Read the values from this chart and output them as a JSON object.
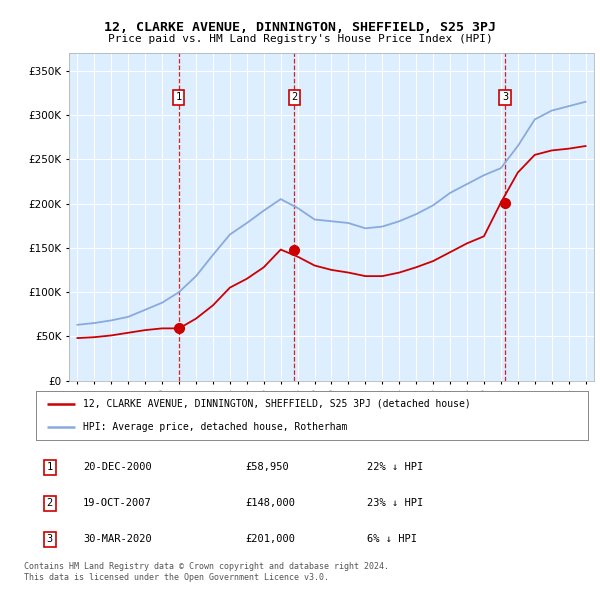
{
  "title": "12, CLARKE AVENUE, DINNINGTON, SHEFFIELD, S25 3PJ",
  "subtitle": "Price paid vs. HM Land Registry's House Price Index (HPI)",
  "ytick_values": [
    0,
    50000,
    100000,
    150000,
    200000,
    250000,
    300000,
    350000
  ],
  "ylim": [
    0,
    370000
  ],
  "xlim_start": 1994.5,
  "xlim_end": 2025.5,
  "sale_points": [
    {
      "num": 1,
      "year": 2000.97,
      "price": 58950,
      "date": "20-DEC-2000",
      "pct": "22%",
      "dir": "↓"
    },
    {
      "num": 2,
      "year": 2007.8,
      "price": 148000,
      "date": "19-OCT-2007",
      "pct": "23%",
      "dir": "↓"
    },
    {
      "num": 3,
      "year": 2020.25,
      "price": 201000,
      "date": "30-MAR-2020",
      "pct": "6%",
      "dir": "↓"
    }
  ],
  "legend_entries": [
    "12, CLARKE AVENUE, DINNINGTON, SHEFFIELD, S25 3PJ (detached house)",
    "HPI: Average price, detached house, Rotherham"
  ],
  "footer_lines": [
    "Contains HM Land Registry data © Crown copyright and database right 2024.",
    "This data is licensed under the Open Government Licence v3.0."
  ],
  "line_color_red": "#cc0000",
  "line_color_blue": "#88aadd",
  "bg_color": "#ddeeff",
  "grid_color": "#ffffff",
  "sale_box_color": "#cc0000",
  "hpi_years": [
    1995,
    1996,
    1997,
    1998,
    1999,
    2000,
    2001,
    2002,
    2003,
    2004,
    2005,
    2006,
    2007,
    2008,
    2009,
    2010,
    2011,
    2012,
    2013,
    2014,
    2015,
    2016,
    2017,
    2018,
    2019,
    2020,
    2021,
    2022,
    2023,
    2024,
    2025
  ],
  "hpi_values": [
    63000,
    65000,
    68000,
    72000,
    80000,
    88000,
    100000,
    118000,
    142000,
    165000,
    178000,
    192000,
    205000,
    195000,
    182000,
    180000,
    178000,
    172000,
    174000,
    180000,
    188000,
    198000,
    212000,
    222000,
    232000,
    240000,
    265000,
    295000,
    305000,
    310000,
    315000
  ],
  "red_years": [
    1995,
    1996,
    1997,
    1998,
    1999,
    2000,
    2001,
    2002,
    2003,
    2004,
    2005,
    2006,
    2007,
    2008,
    2009,
    2010,
    2011,
    2012,
    2013,
    2014,
    2015,
    2016,
    2017,
    2018,
    2019,
    2020,
    2021,
    2022,
    2023,
    2024,
    2025
  ],
  "red_values": [
    48000,
    49000,
    51000,
    54000,
    57000,
    58950,
    58950,
    70000,
    85000,
    105000,
    115000,
    128000,
    148000,
    140000,
    130000,
    125000,
    122000,
    118000,
    118000,
    122000,
    128000,
    135000,
    145000,
    155000,
    163000,
    201000,
    235000,
    255000,
    260000,
    262000,
    265000
  ]
}
